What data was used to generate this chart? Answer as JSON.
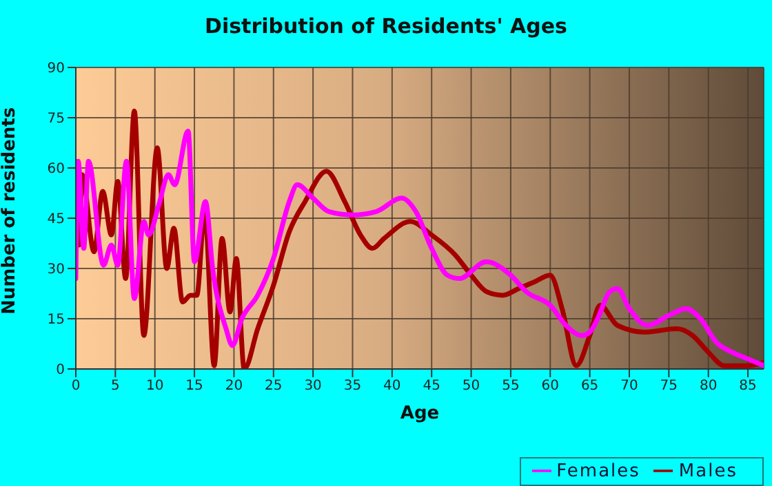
{
  "chart_data": {
    "type": "line",
    "title": "Distribution of Residents' Ages",
    "xlabel": "Age",
    "ylabel": "Number of residents",
    "xlim": [
      0,
      87
    ],
    "xticks": [
      0,
      5,
      10,
      15,
      20,
      25,
      30,
      35,
      40,
      45,
      50,
      55,
      60,
      65,
      70,
      75,
      80,
      85
    ],
    "ylim": [
      0,
      90
    ],
    "yticks": [
      0,
      15,
      30,
      45,
      60,
      75,
      90
    ],
    "grid": true,
    "legend": "bottom right",
    "marker": "none",
    "line_style": "solid",
    "series": [
      {
        "name": "Males",
        "color": "#a50000",
        "x": [
          0,
          0.4,
          0.8,
          2.3,
          3.4,
          4.5,
          5.3,
          6.3,
          7.4,
          8.6,
          10.3,
          11.5,
          12.4,
          13.5,
          14.5,
          15.3,
          16.3,
          17.5,
          18.5,
          19.5,
          20.3,
          21.3,
          23,
          25,
          27,
          29,
          31.7,
          34,
          36,
          37.5,
          39,
          42.3,
          45,
          48,
          50,
          52,
          54,
          56,
          58,
          60,
          61.5,
          63.3,
          65,
          66.3,
          68.5,
          72,
          76,
          78,
          80,
          82,
          85,
          87
        ],
        "values": [
          62,
          37,
          58,
          35,
          53,
          40,
          56,
          27,
          77,
          10,
          66,
          30,
          42,
          20,
          22,
          22,
          47,
          1,
          39,
          17,
          33,
          0,
          12,
          25,
          41,
          50,
          59,
          50,
          40,
          36,
          39,
          44,
          40,
          34,
          28,
          23,
          22,
          24,
          26,
          28,
          18,
          1,
          10,
          19,
          13,
          11,
          12,
          10,
          5,
          1,
          1,
          2
        ]
      },
      {
        "name": "Females",
        "color": "#ff00ff",
        "x": [
          0,
          0.3,
          1,
          1.6,
          3.5,
          4.5,
          5.3,
          6.4,
          7.4,
          8.6,
          9.2,
          10.5,
          11.7,
          12.5,
          14.2,
          15,
          16.4,
          17.3,
          19,
          19.8,
          21,
          23,
          25,
          27,
          28,
          30,
          32,
          35,
          38,
          41.2,
          43,
          45,
          47,
          48.5,
          51.9,
          55,
          57,
          60,
          62,
          64,
          65,
          66,
          67.5,
          68.5,
          70,
          72.3,
          75,
          77.2,
          79,
          81,
          83,
          85,
          87
        ],
        "values": [
          27,
          62,
          36,
          62,
          31,
          37,
          31,
          62,
          21,
          44,
          40,
          49,
          58,
          55,
          71,
          32,
          50,
          30,
          12,
          7,
          15,
          22,
          33,
          50,
          55,
          51,
          47,
          46,
          47,
          51,
          47,
          36,
          28,
          27,
          32,
          28,
          23,
          19,
          13,
          10,
          11,
          15,
          23,
          24,
          18,
          13,
          16,
          18,
          15,
          8,
          5,
          3,
          1
        ]
      }
    ]
  }
}
